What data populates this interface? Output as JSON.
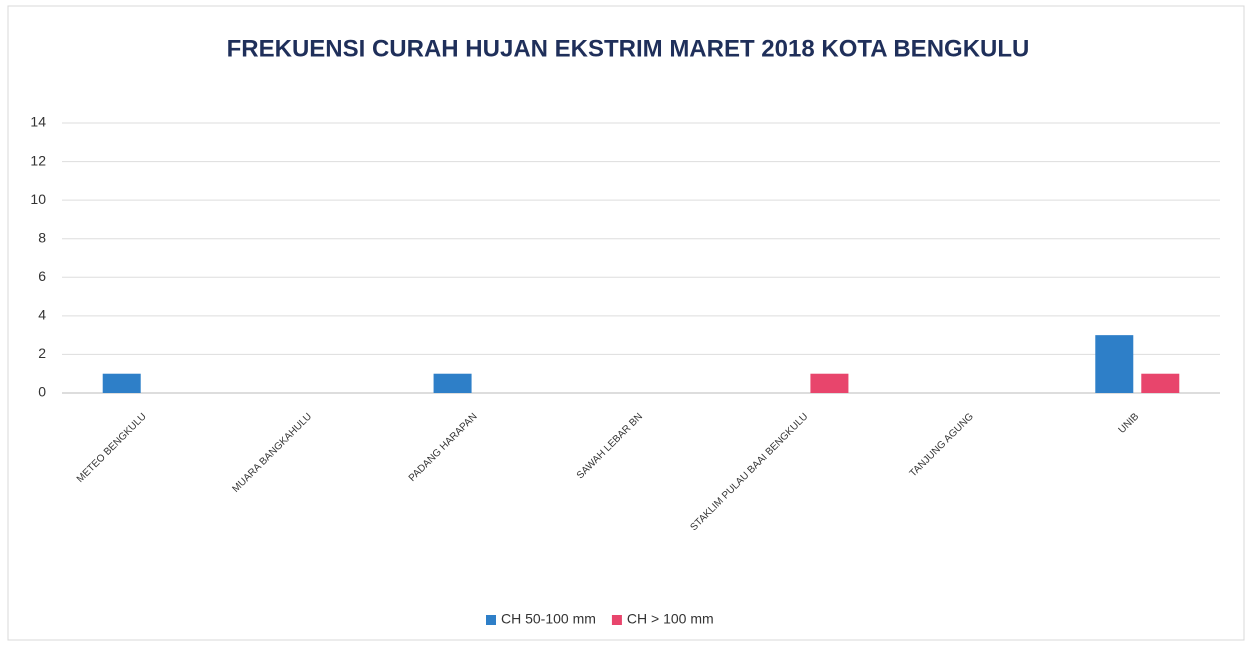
{
  "chart_data": {
    "type": "bar",
    "title": "FREKUENSI CURAH HUJAN EKSTRIM MARET 2018 KOTA BENGKULU",
    "categories": [
      "METEO BENGKULU",
      "MUARA BANGKAHULU",
      "PADANG HARAPAN",
      "SAWAH LEBAR BN",
      "STAKLIM PULAU BAAI BENGKULU",
      "TANJUNG AGUNG",
      "UNIB"
    ],
    "series": [
      {
        "name": "CH 50-100 mm",
        "color": "#2e7fc8",
        "values": [
          1,
          0,
          1,
          0,
          0,
          0,
          3
        ]
      },
      {
        "name": "CH > 100 mm",
        "color": "#e8456c",
        "values": [
          0,
          0,
          0,
          0,
          1,
          0,
          1
        ]
      }
    ],
    "ylim": [
      0,
      14
    ],
    "yticks": [
      0,
      2,
      4,
      6,
      8,
      10,
      12,
      14
    ],
    "grid": true,
    "legend": "bottom"
  }
}
